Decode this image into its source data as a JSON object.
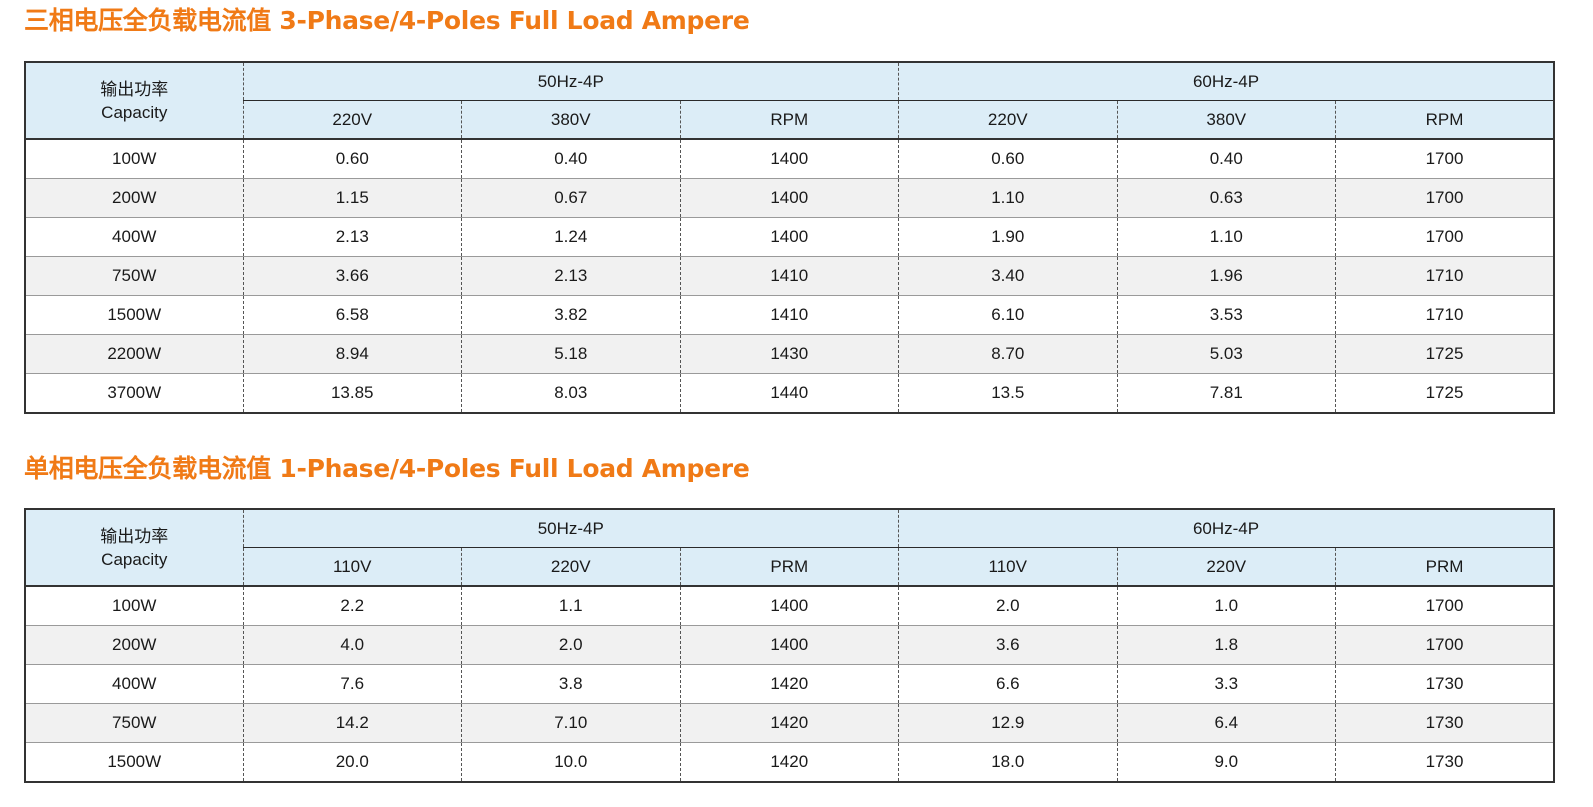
{
  "three_phase": {
    "title": "三相电压全负载电流值 3-Phase/4-Poles Full Load Ampere",
    "capacity_cn": "输出功率",
    "capacity_en": "Capacity",
    "group_50": "50Hz-4P",
    "group_60": "60Hz-4P",
    "sub_headers": [
      "220V",
      "380V",
      "RPM",
      "220V",
      "380V",
      "RPM"
    ],
    "rows": [
      [
        "100W",
        "0.60",
        "0.40",
        "1400",
        "0.60",
        "0.40",
        "1700"
      ],
      [
        "200W",
        "1.15",
        "0.67",
        "1400",
        "1.10",
        "0.63",
        "1700"
      ],
      [
        "400W",
        "2.13",
        "1.24",
        "1400",
        "1.90",
        "1.10",
        "1700"
      ],
      [
        "750W",
        "3.66",
        "2.13",
        "1410",
        "3.40",
        "1.96",
        "1710"
      ],
      [
        "1500W",
        "6.58",
        "3.82",
        "1410",
        "6.10",
        "3.53",
        "1710"
      ],
      [
        "2200W",
        "8.94",
        "5.18",
        "1430",
        "8.70",
        "5.03",
        "1725"
      ],
      [
        "3700W",
        "13.85",
        "8.03",
        "1440",
        "13.5",
        "7.81",
        "1725"
      ]
    ]
  },
  "single_phase": {
    "title": "单相电压全负载电流值 1-Phase/4-Poles Full Load Ampere",
    "capacity_cn": "输出功率",
    "capacity_en": "Capacity",
    "group_50": "50Hz-4P",
    "group_60": "60Hz-4P",
    "sub_headers": [
      "110V",
      "220V",
      "PRM",
      "110V",
      "220V",
      "PRM"
    ],
    "rows": [
      [
        "100W",
        "2.2",
        "1.1",
        "1400",
        "2.0",
        "1.0",
        "1700"
      ],
      [
        "200W",
        "4.0",
        "2.0",
        "1400",
        "3.6",
        "1.8",
        "1700"
      ],
      [
        "400W",
        "7.6",
        "3.8",
        "1420",
        "6.6",
        "3.3",
        "1730"
      ],
      [
        "750W",
        "14.2",
        "7.10",
        "1420",
        "12.9",
        "6.4",
        "1730"
      ],
      [
        "1500W",
        "20.0",
        "10.0",
        "1420",
        "18.0",
        "9.0",
        "1730"
      ]
    ]
  },
  "colors": {
    "title": "#f07a16",
    "header_bg": "#dcedf7",
    "stripe_bg": "#f1f1f1"
  }
}
